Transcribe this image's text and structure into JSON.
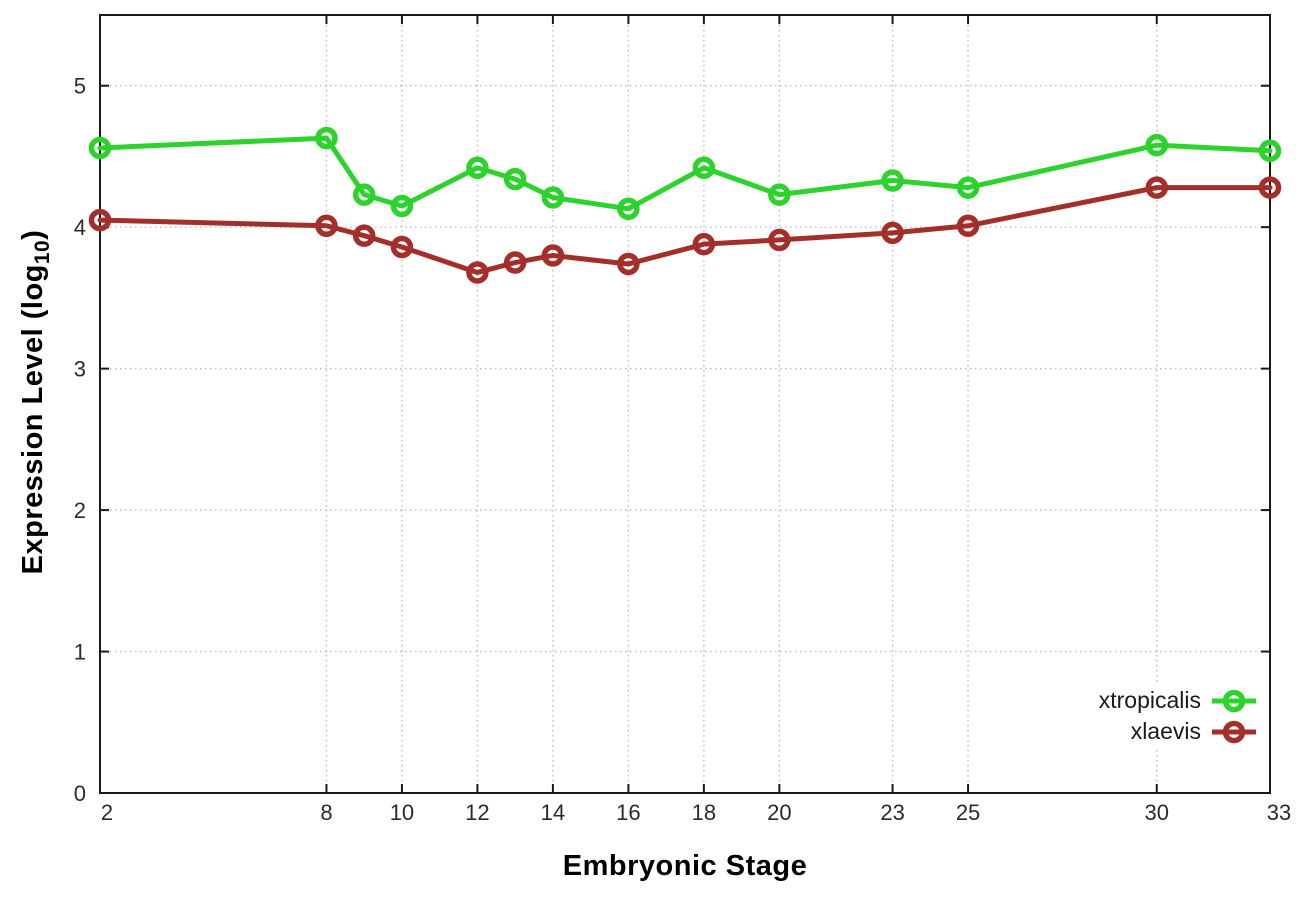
{
  "figure": {
    "background": "#ffffff",
    "ylabel_main": "Expression Level (log",
    "ylabel_sub": "10",
    "ylabel_close": ")"
  },
  "chart_data": {
    "type": "line",
    "title": "",
    "xlabel": "Embryonic Stage",
    "ylabel": "Expression Level (log10)",
    "x": [
      2,
      8,
      9,
      10,
      12,
      13,
      14,
      16,
      18,
      20,
      23,
      25,
      30,
      33
    ],
    "series": [
      {
        "name": "xtropicalis",
        "color": "#2dd22d",
        "values": [
          4.56,
          4.63,
          4.23,
          4.15,
          4.42,
          4.34,
          4.21,
          4.13,
          4.42,
          4.23,
          4.33,
          4.28,
          4.58,
          4.54
        ]
      },
      {
        "name": "xlaevis",
        "color": "#a32f2a",
        "values": [
          4.05,
          4.01,
          3.94,
          3.86,
          3.68,
          3.75,
          3.8,
          3.74,
          3.88,
          3.91,
          3.96,
          4.01,
          4.28,
          4.28
        ]
      }
    ],
    "xticks": [
      2,
      8,
      10,
      12,
      14,
      16,
      18,
      20,
      23,
      25,
      30,
      33
    ],
    "yticks": [
      0,
      1,
      2,
      3,
      4,
      5
    ],
    "xlim": [
      2,
      33
    ],
    "ylim": [
      0,
      5.5
    ],
    "grid": true,
    "grid_style": "dotted",
    "legend_position": "inside-bottom-right",
    "marker": "open-circle",
    "colors": {
      "grid": "#bcbcbc",
      "axis": "#1a1a1a",
      "tick_text": "#2b2b2b"
    }
  }
}
